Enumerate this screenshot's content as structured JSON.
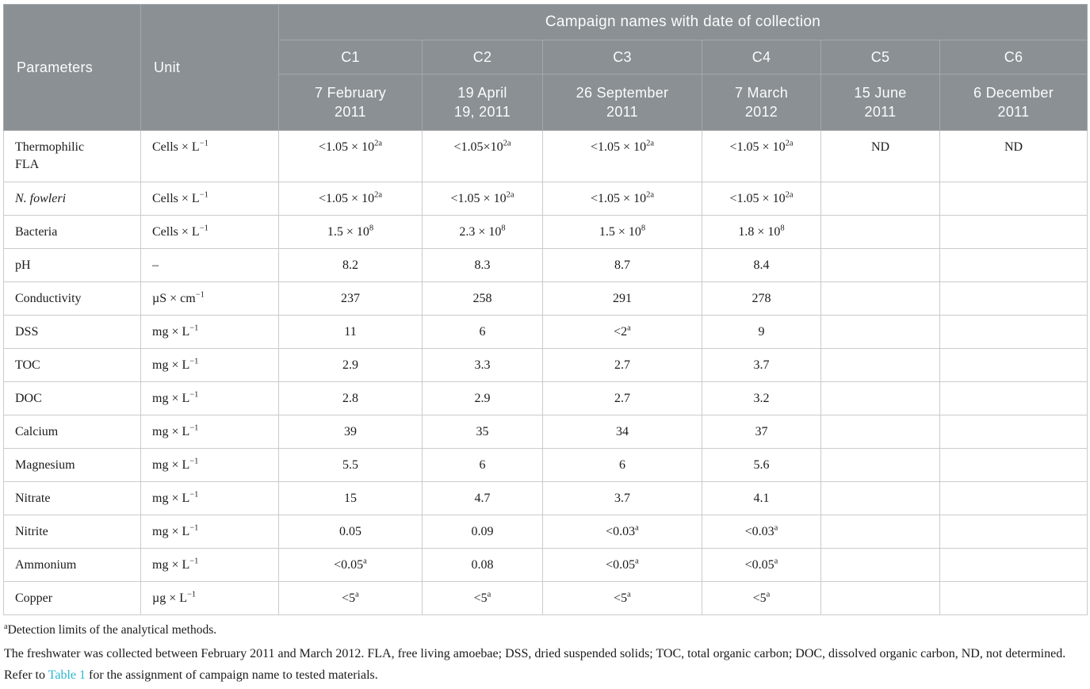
{
  "table": {
    "group_header": "Campaign names with date of collection",
    "columns": {
      "parameters": "Parameters",
      "unit": "Unit"
    },
    "campaigns": [
      {
        "name": "C1",
        "date": "7 February\n2011"
      },
      {
        "name": "C2",
        "date": "19 April\n19, 2011"
      },
      {
        "name": "C3",
        "date": "26 September\n2011"
      },
      {
        "name": "C4",
        "date": "7 March\n2012"
      },
      {
        "name": "C5",
        "date": "15 June\n2011"
      },
      {
        "name": "C6",
        "date": "6 December\n2011"
      }
    ],
    "rows": [
      {
        "parameter": "Thermophilic\nFLA",
        "italic": false,
        "unit": "Cells × L^{−1}",
        "values": [
          "<1.05 × 10^{2a}",
          "<1.05×10^{2a}",
          "<1.05 × 10^{2a}",
          "<1.05 × 10^{2a}",
          "ND",
          "ND"
        ]
      },
      {
        "parameter": "N. fowleri",
        "italic": true,
        "unit": "Cells × L^{−1}",
        "values": [
          "<1.05 × 10^{2a}",
          "<1.05 × 10^{2a}",
          "<1.05 × 10^{2a}",
          "<1.05 × 10^{2a}",
          "",
          ""
        ]
      },
      {
        "parameter": "Bacteria",
        "italic": false,
        "unit": "Cells × L^{−1}",
        "values": [
          "1.5 × 10^{8}",
          "2.3 × 10^{8}",
          "1.5 × 10^{8}",
          "1.8 × 10^{8}",
          "",
          ""
        ]
      },
      {
        "parameter": "pH",
        "italic": false,
        "unit": "–",
        "values": [
          "8.2",
          "8.3",
          "8.7",
          "8.4",
          "",
          ""
        ]
      },
      {
        "parameter": "Conductivity",
        "italic": false,
        "unit": "µS × cm^{−1}",
        "values": [
          "237",
          "258",
          "291",
          "278",
          "",
          ""
        ]
      },
      {
        "parameter": "DSS",
        "italic": false,
        "unit": "mg × L^{−1}",
        "values": [
          "11",
          "6",
          "<2^{a}",
          "9",
          "",
          ""
        ]
      },
      {
        "parameter": "TOC",
        "italic": false,
        "unit": "mg × L^{−1}",
        "values": [
          "2.9",
          "3.3",
          "2.7",
          "3.7",
          "",
          ""
        ]
      },
      {
        "parameter": "DOC",
        "italic": false,
        "unit": "mg × L^{−1}",
        "values": [
          "2.8",
          "2.9",
          "2.7",
          "3.2",
          "",
          ""
        ]
      },
      {
        "parameter": "Calcium",
        "italic": false,
        "unit": "mg × L^{−1}",
        "values": [
          "39",
          "35",
          "34",
          "37",
          "",
          ""
        ]
      },
      {
        "parameter": "Magnesium",
        "italic": false,
        "unit": "mg × L^{−1}",
        "values": [
          "5.5",
          "6",
          "6",
          "5.6",
          "",
          ""
        ]
      },
      {
        "parameter": "Nitrate",
        "italic": false,
        "unit": "mg × L^{−1}",
        "values": [
          "15",
          "4.7",
          "3.7",
          "4.1",
          "",
          ""
        ]
      },
      {
        "parameter": "Nitrite",
        "italic": false,
        "unit": "mg × L^{−1}",
        "values": [
          "0.05",
          "0.09",
          "<0.03^{a}",
          "<0.03^{a}",
          "",
          ""
        ]
      },
      {
        "parameter": "Ammonium",
        "italic": false,
        "unit": "mg × L^{−1}",
        "values": [
          "<0.05^{a}",
          "0.08",
          "<0.05^{a}",
          "<0.05^{a}",
          "",
          ""
        ]
      },
      {
        "parameter": "Copper",
        "italic": false,
        "unit": "µg × L^{−1}",
        "values": [
          "<5^{a}",
          "<5^{a}",
          "<5^{a}",
          "<5^{a}",
          "",
          ""
        ]
      }
    ]
  },
  "footnotes": {
    "detection_sup": "a",
    "detection_text": "Detection limits of the analytical methods.",
    "note_before": "The freshwater was collected between February 2011 and March 2012. FLA, free living amoebae; DSS, dried suspended solids; TOC, total organic carbon; DOC, dissolved organic carbon, ND, not determined. Refer to ",
    "link_text": "Table 1",
    "note_after": " for the assignment of campaign name to tested materials."
  },
  "colors": {
    "header_bg": "#8A9094",
    "header_divider": "#A3A8AB",
    "header_text": "#FBFCFC",
    "body_border": "#C9CBCD",
    "body_text": "#1B1B1B",
    "link": "#2AB7CE"
  }
}
